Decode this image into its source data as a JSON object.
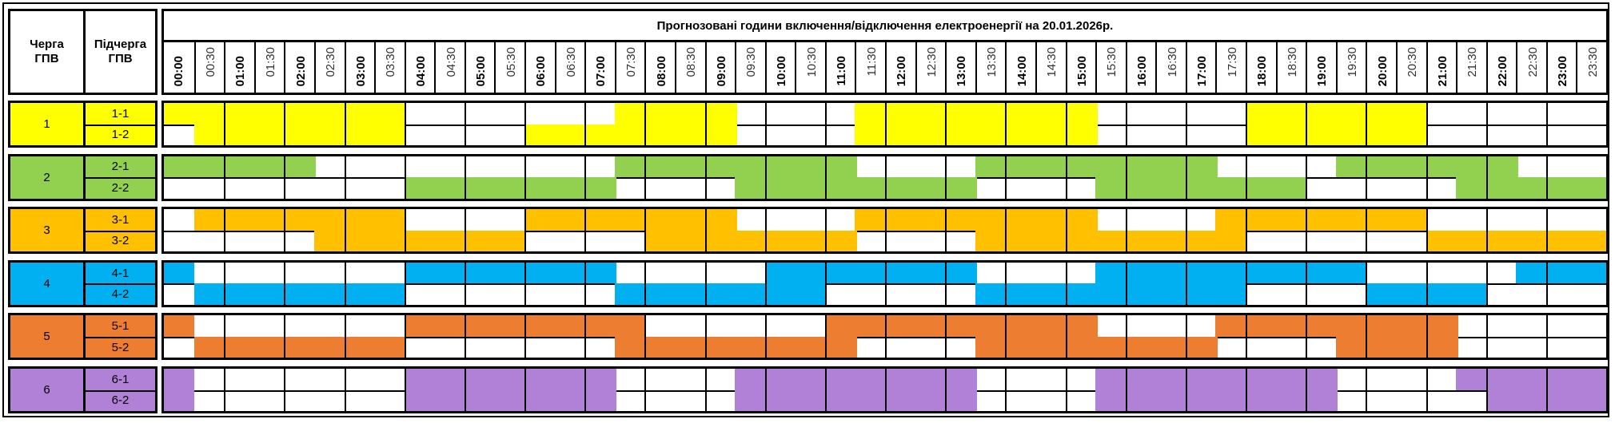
{
  "header": {
    "queue_label": "Черга\nГПВ",
    "subqueue_label": "Підчерга\nГПВ",
    "title": "Прогнозовані години включення/відключення електроенергії на 20.01.2026р."
  },
  "times": [
    "00:00",
    "00:30",
    "01:00",
    "01:30",
    "02:00",
    "02:30",
    "03:00",
    "03:30",
    "04:00",
    "04:30",
    "05:00",
    "05:30",
    "06:00",
    "06:30",
    "07:00",
    "07:30",
    "08:00",
    "08:30",
    "09:00",
    "09:30",
    "10:00",
    "10:30",
    "11:00",
    "11:30",
    "12:00",
    "12:30",
    "13:00",
    "13:30",
    "14:00",
    "14:30",
    "15:00",
    "15:30",
    "16:00",
    "16:30",
    "17:00",
    "17:30",
    "18:00",
    "18:30",
    "19:00",
    "19:30",
    "20:00",
    "20:30",
    "21:00",
    "21:30",
    "22:00",
    "22:30",
    "23:00",
    "23:30"
  ],
  "groups": [
    {
      "label": "1",
      "color": "#FFFF00",
      "subgroups": [
        {
          "label": "1-1",
          "schedule": "111111110000000111100001111111100000111111000000"
        },
        {
          "label": "1-2",
          "schedule": "011111110000111111100001111111100000111111000000"
        }
      ]
    },
    {
      "label": "2",
      "color": "#92D050",
      "subgroups": [
        {
          "label": "2-1",
          "schedule": "111110000000000111111110000111111110000111111000"
        },
        {
          "label": "2-2",
          "schedule": "000000001111111000011111111000011111110000011111"
        }
      ]
    },
    {
      "label": "3",
      "color": "#FFC000",
      "subgroups": [
        {
          "label": "3-1",
          "schedule": "011111110000111111100001111111100001111111000000"
        },
        {
          "label": "3-2",
          "schedule": "000001111111000011111110000111111111000000111111"
        }
      ]
    },
    {
      "label": "4",
      "color": "#00B0F0",
      "subgroups": [
        {
          "label": "4-1",
          "schedule": "100000001111111000001111111000011111111100000111"
        },
        {
          "label": "4-2",
          "schedule": "011111110000000111111100000111111111000011110000"
        }
      ]
    },
    {
      "label": "5",
      "color": "#ED7D31",
      "subgroups": [
        {
          "label": "5-1",
          "schedule": "100000001111111100000011111111100001111111100000"
        },
        {
          "label": "5-2",
          "schedule": "011111110000000111111110000111111110000111100000"
        }
      ]
    },
    {
      "label": "6",
      "color": "#B180D7",
      "subgroups": [
        {
          "label": "6-1",
          "schedule": "100000001111111000011111111000011111111000011111"
        },
        {
          "label": "6-2",
          "schedule": "100000001111111000011111111000011111111000001111"
        }
      ]
    }
  ]
}
